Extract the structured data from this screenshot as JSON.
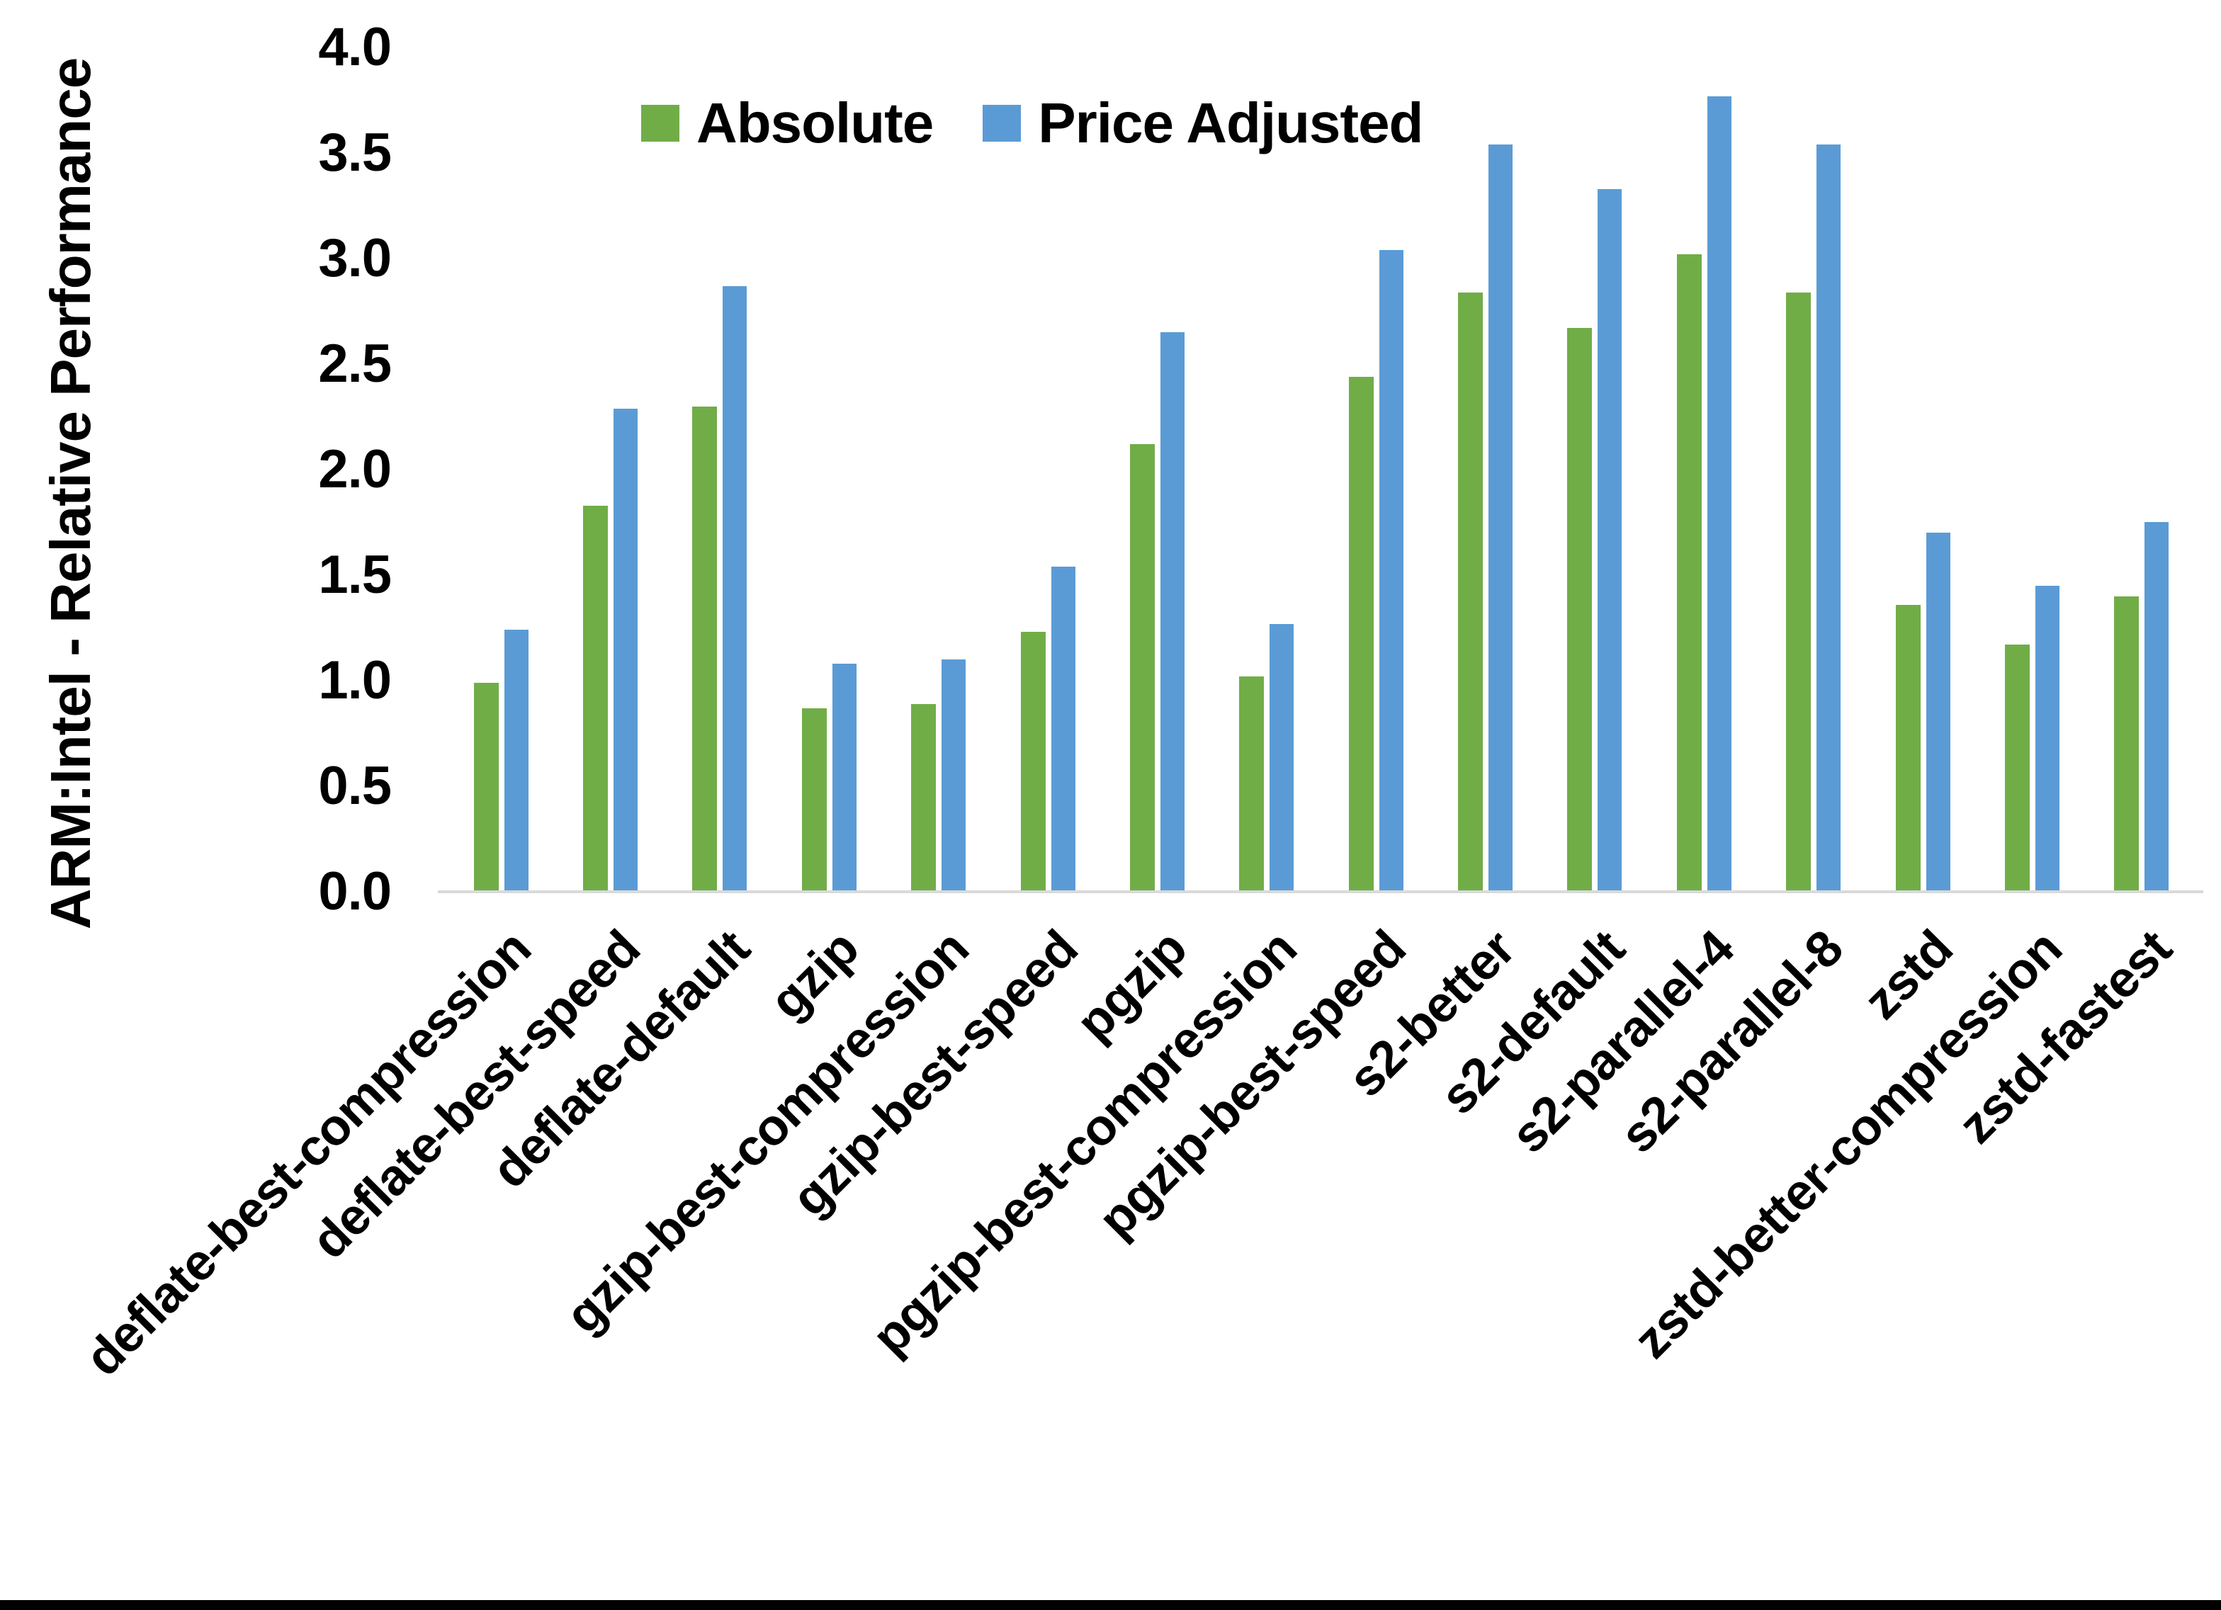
{
  "chart_data": {
    "type": "bar",
    "title": "",
    "xlabel": "",
    "ylabel": "ARM:Intel - Relative Performance",
    "ylim": [
      0.0,
      4.0
    ],
    "ytick_step": 0.5,
    "yticks": [
      "4.0",
      "3.5",
      "3.0",
      "2.5",
      "2.0",
      "1.5",
      "1.0",
      "0.5",
      "0.0"
    ],
    "grid": false,
    "legend_position": "top",
    "categories": [
      "deflate-best-compression",
      "deflate-best-speed",
      "deflate-default",
      "gzip",
      "gzip-best-compression",
      "gzip-best-speed",
      "pgzip",
      "pgzip-best-compression",
      "pgzip-best-speed",
      "s2-better",
      "s2-default",
      "s2-parallel-4",
      "s2-parallel-8",
      "zstd",
      "zstd-better-compression",
      "zstd-fastest"
    ],
    "series": [
      {
        "name": "Absolute",
        "color": "#70AD47",
        "values": [
          0.99,
          1.83,
          2.3,
          0.87,
          0.89,
          1.23,
          2.12,
          1.02,
          2.44,
          2.84,
          2.67,
          3.02,
          2.84,
          1.36,
          1.17,
          1.4
        ]
      },
      {
        "name": "Price Adjusted",
        "color": "#5B9BD5",
        "values": [
          1.24,
          2.29,
          2.87,
          1.08,
          1.1,
          1.54,
          2.65,
          1.27,
          3.04,
          3.54,
          3.33,
          3.77,
          3.54,
          1.7,
          1.45,
          1.75
        ]
      }
    ]
  },
  "colors": {
    "axis_line": "#D9D9D9",
    "text": "#000000",
    "background": "#FFFFFF",
    "bottom_bar": "#000000"
  }
}
